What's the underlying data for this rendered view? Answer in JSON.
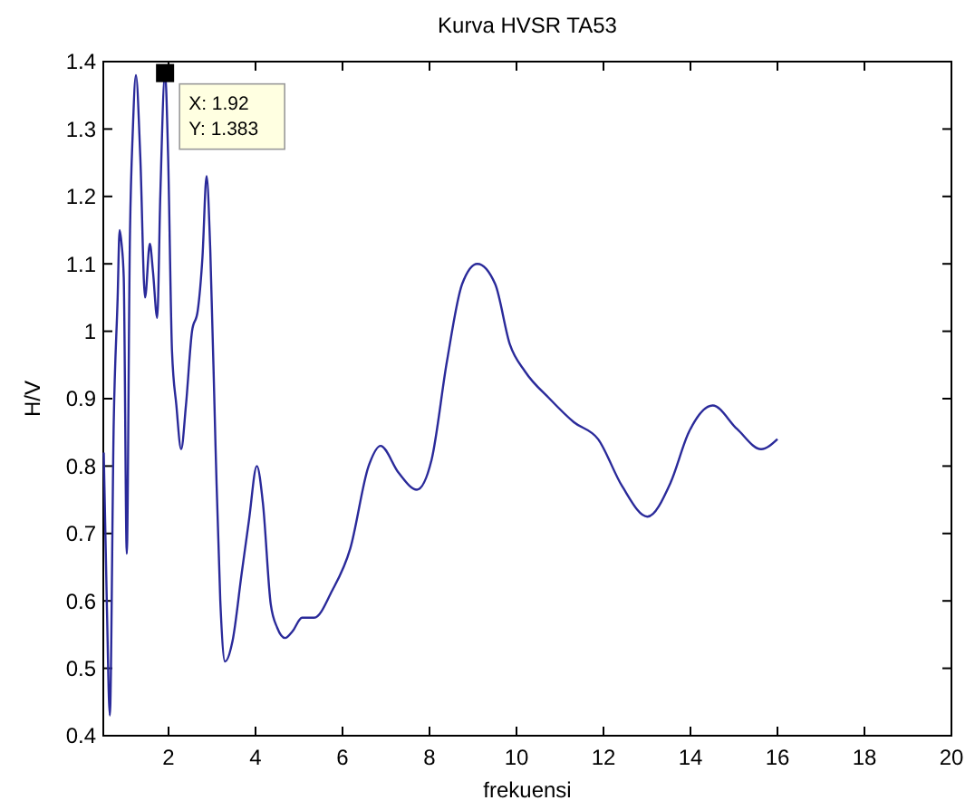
{
  "chart_data": {
    "type": "line",
    "title": "Kurva HVSR TA53",
    "xlabel": "frekuensi",
    "ylabel": "H/V",
    "xlim": [
      0.5,
      20
    ],
    "xticks": [
      2,
      4,
      6,
      8,
      10,
      12,
      14,
      16,
      18,
      20
    ],
    "ylim": [
      0.4,
      1.4
    ],
    "yticks": [
      0.4,
      0.5,
      0.6,
      0.7,
      0.8,
      0.9,
      1,
      1.1,
      1.2,
      1.3,
      1.4
    ],
    "grid": false,
    "marker": "none",
    "line_style": "solid",
    "annotations": [
      {
        "text": "X: 1.92\nY: 1.383",
        "x": 1.92,
        "y": 1.383
      }
    ],
    "series": [
      {
        "color": "#2a2a9a",
        "x": [
          0.51,
          0.58,
          0.65,
          0.74,
          0.83,
          0.875,
          0.92,
          0.97,
          1.04,
          1.11,
          1.18,
          1.25,
          1.35,
          1.46,
          1.57,
          1.64,
          1.74,
          1.81,
          1.92,
          1.99,
          2.08,
          2.18,
          2.29,
          2.4,
          2.54,
          2.67,
          2.78,
          2.875,
          2.96,
          3.08,
          3.19,
          3.3,
          3.47,
          3.68,
          3.85,
          4.03,
          4.17,
          4.35,
          4.5,
          4.68,
          4.85,
          5.07,
          5.35,
          5.76,
          6.18,
          6.6,
          6.875,
          7.29,
          7.71,
          8.05,
          8.4,
          8.75,
          9.1,
          9.51,
          9.85,
          10.2,
          10.76,
          11.32,
          11.875,
          12.43,
          13.01,
          13.54,
          13.96,
          14.51,
          15.07,
          15.625,
          16.0
        ],
        "values": [
          0.82,
          0.6,
          0.43,
          0.865,
          1.05,
          1.15,
          1.13,
          1.08,
          0.67,
          1.13,
          1.3,
          1.38,
          1.26,
          1.05,
          1.13,
          1.09,
          1.02,
          1.2,
          1.383,
          1.26,
          0.97,
          0.89,
          0.825,
          0.89,
          1.0,
          1.03,
          1.11,
          1.23,
          1.12,
          0.83,
          0.6,
          0.51,
          0.54,
          0.64,
          0.72,
          0.8,
          0.745,
          0.595,
          0.56,
          0.545,
          0.555,
          0.575,
          0.575,
          0.615,
          0.678,
          0.8,
          0.83,
          0.79,
          0.765,
          0.81,
          0.955,
          1.07,
          1.1,
          1.07,
          0.98,
          0.94,
          0.9,
          0.865,
          0.84,
          0.77,
          0.725,
          0.775,
          0.85,
          0.89,
          0.855,
          0.825,
          0.84
        ]
      }
    ]
  }
}
